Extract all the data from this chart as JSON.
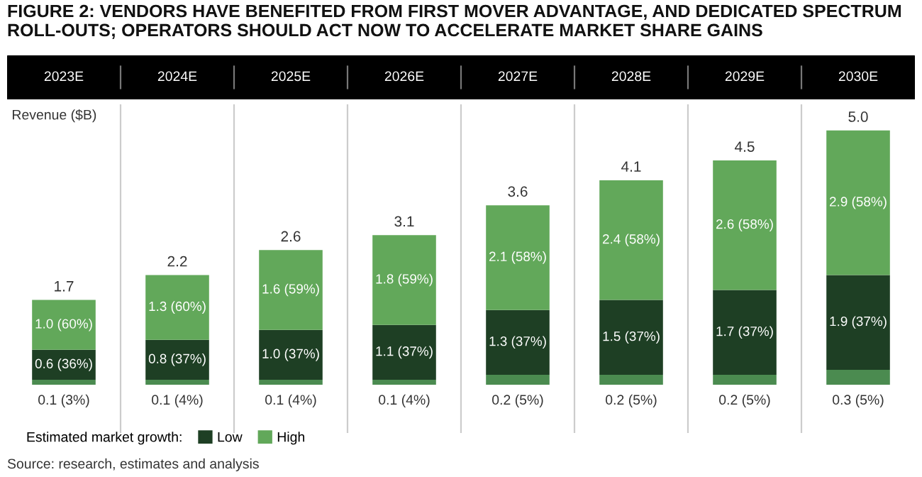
{
  "chart_data": {
    "type": "bar",
    "title": "FIGURE 2: VENDORS HAVE BENEFITED FROM FIRST MOVER ADVANTAGE, AND DEDICATED SPECTRUM ROLL-OUTS; OPERATORS SHOULD ACT NOW TO ACCELERATE MARKET SHARE GAINS",
    "ylabel": "Revenue ($B)",
    "categories": [
      "2023E",
      "2024E",
      "2025E",
      "2026E",
      "2027E",
      "2028E",
      "2029E",
      "2030E"
    ],
    "stacked": true,
    "series": [
      {
        "color": "#4b8b50",
        "values": [
          0.1,
          0.1,
          0.1,
          0.1,
          0.2,
          0.2,
          0.2,
          0.3
        ],
        "value_labels": [
          "0.1 (3%)",
          "0.1 (4%)",
          "0.1 (4%)",
          "0.1 (4%)",
          "0.2 (5%)",
          "0.2 (5%)",
          "0.2 (5%)",
          "0.3 (5%)"
        ]
      },
      {
        "name": "Low",
        "color": "#1e3f24",
        "values": [
          0.6,
          0.8,
          1.0,
          1.1,
          1.3,
          1.5,
          1.7,
          1.9
        ],
        "value_labels": [
          "0.6 (36%)",
          "0.8 (37%)",
          "1.0 (37%)",
          "1.1 (37%)",
          "1.3 (37%)",
          "1.5 (37%)",
          "1.7 (37%)",
          "1.9 (37%)"
        ]
      },
      {
        "name": "High",
        "color": "#62a85a",
        "values": [
          1.0,
          1.3,
          1.6,
          1.8,
          2.1,
          2.4,
          2.6,
          2.9
        ],
        "value_labels": [
          "1.0 (60%)",
          "1.3 (60%)",
          "1.6 (59%)",
          "1.8 (59%)",
          "2.1 (58%)",
          "2.4 (58%)",
          "2.6 (58%)",
          "2.9 (58%)"
        ]
      }
    ],
    "totals": [
      "1.7",
      "2.2",
      "2.6",
      "3.1",
      "3.6",
      "4.1",
      "4.5",
      "5.0"
    ],
    "legend_title": "Estimated market growth:",
    "legend": "bottom left",
    "annotations": [
      "Source: research, estimates and analysis"
    ]
  }
}
